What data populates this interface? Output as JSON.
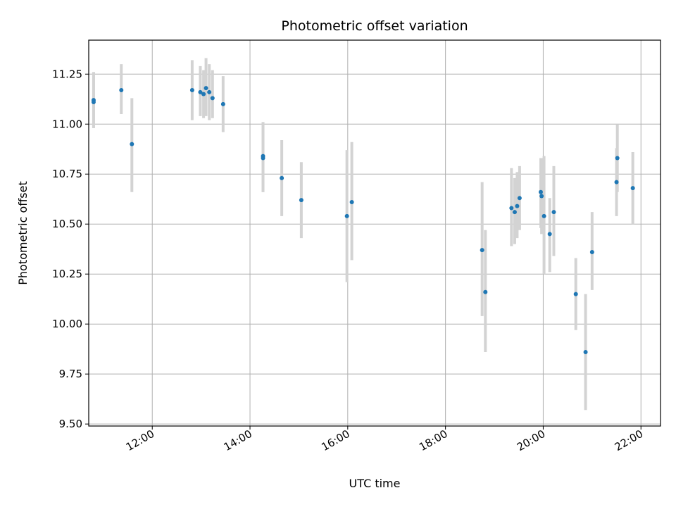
{
  "chart_data": {
    "type": "scatter",
    "title": "Photometric offset variation",
    "xlabel": "UTC time",
    "ylabel": "Photometric offset",
    "x_axis_kind": "time-of-day",
    "xlim": [
      "10:42",
      "22:24"
    ],
    "ylim": [
      9.49,
      11.42
    ],
    "x_ticks": [
      "12:00",
      "14:00",
      "16:00",
      "18:00",
      "20:00",
      "22:00"
    ],
    "y_ticks": [
      "9.50",
      "9.75",
      "10.00",
      "10.25",
      "10.50",
      "10.75",
      "11.00",
      "11.25"
    ],
    "grid": true,
    "point_color": "#1f77b4",
    "errorbar_color": "#d3d3d3",
    "points": [
      {
        "t": "10:48",
        "y": 11.12,
        "lo": 10.98,
        "hi": 11.26
      },
      {
        "t": "10:48",
        "y": 11.11,
        "lo": 10.98,
        "hi": 11.26
      },
      {
        "t": "11:22",
        "y": 11.17,
        "lo": 11.05,
        "hi": 11.3
      },
      {
        "t": "11:35",
        "y": 10.9,
        "lo": 10.66,
        "hi": 11.13
      },
      {
        "t": "12:49",
        "y": 11.17,
        "lo": 11.02,
        "hi": 11.32
      },
      {
        "t": "12:59",
        "y": 11.16,
        "lo": 11.04,
        "hi": 11.29
      },
      {
        "t": "13:03",
        "y": 11.15,
        "lo": 11.03,
        "hi": 11.27
      },
      {
        "t": "13:06",
        "y": 11.18,
        "lo": 11.04,
        "hi": 11.33
      },
      {
        "t": "13:10",
        "y": 11.16,
        "lo": 11.02,
        "hi": 11.3
      },
      {
        "t": "13:14",
        "y": 11.13,
        "lo": 11.03,
        "hi": 11.27
      },
      {
        "t": "13:27",
        "y": 11.1,
        "lo": 10.96,
        "hi": 11.24
      },
      {
        "t": "14:16",
        "y": 10.83,
        "lo": 10.66,
        "hi": 11.01
      },
      {
        "t": "14:16",
        "y": 10.84,
        "lo": 10.66,
        "hi": 11.01
      },
      {
        "t": "14:39",
        "y": 10.73,
        "lo": 10.54,
        "hi": 10.92
      },
      {
        "t": "15:03",
        "y": 10.62,
        "lo": 10.43,
        "hi": 10.81
      },
      {
        "t": "15:59",
        "y": 10.54,
        "lo": 10.21,
        "hi": 10.87
      },
      {
        "t": "16:05",
        "y": 10.61,
        "lo": 10.32,
        "hi": 10.91
      },
      {
        "t": "18:45",
        "y": 10.37,
        "lo": 10.04,
        "hi": 10.71
      },
      {
        "t": "18:49",
        "y": 10.16,
        "lo": 9.86,
        "hi": 10.47
      },
      {
        "t": "19:21",
        "y": 10.58,
        "lo": 10.39,
        "hi": 10.78
      },
      {
        "t": "19:25",
        "y": 10.56,
        "lo": 10.4,
        "hi": 10.73
      },
      {
        "t": "19:28",
        "y": 10.59,
        "lo": 10.43,
        "hi": 10.76
      },
      {
        "t": "19:31",
        "y": 10.63,
        "lo": 10.47,
        "hi": 10.79
      },
      {
        "t": "19:57",
        "y": 10.66,
        "lo": 10.48,
        "hi": 10.83
      },
      {
        "t": "19:58",
        "y": 10.64,
        "lo": 10.45,
        "hi": 10.83
      },
      {
        "t": "20:01",
        "y": 10.54,
        "lo": 10.25,
        "hi": 10.84
      },
      {
        "t": "20:08",
        "y": 10.45,
        "lo": 10.26,
        "hi": 10.63
      },
      {
        "t": "20:13",
        "y": 10.56,
        "lo": 10.34,
        "hi": 10.79
      },
      {
        "t": "20:40",
        "y": 10.15,
        "lo": 9.97,
        "hi": 10.33
      },
      {
        "t": "20:52",
        "y": 9.86,
        "lo": 9.57,
        "hi": 10.15
      },
      {
        "t": "21:00",
        "y": 10.36,
        "lo": 10.17,
        "hi": 10.56
      },
      {
        "t": "21:30",
        "y": 10.71,
        "lo": 10.54,
        "hi": 10.88
      },
      {
        "t": "21:31",
        "y": 10.83,
        "lo": 10.66,
        "hi": 11.0
      },
      {
        "t": "21:50",
        "y": 10.68,
        "lo": 10.5,
        "hi": 10.86
      }
    ]
  }
}
